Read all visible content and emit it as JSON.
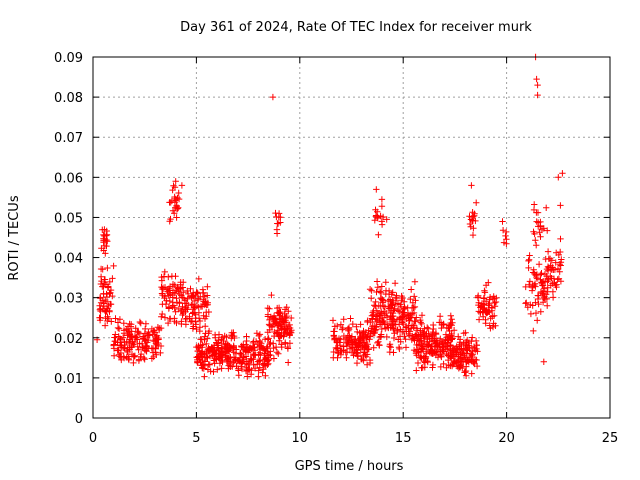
{
  "chart_data": {
    "type": "scatter",
    "title": "Day 361 of 2024, Rate Of TEC Index for receiver murk",
    "xlabel": "GPS time / hours",
    "ylabel": "ROTI / TECUs",
    "xlim": [
      0,
      25
    ],
    "ylim": [
      0,
      0.09
    ],
    "x_ticks": [
      0,
      5,
      10,
      15,
      20,
      25
    ],
    "x_tick_labels": [
      "0",
      "5",
      "10",
      "15",
      "20",
      "25"
    ],
    "y_ticks": [
      0,
      0.01,
      0.02,
      0.03,
      0.04,
      0.05,
      0.06,
      0.07,
      0.08,
      0.09
    ],
    "y_tick_labels": [
      "0",
      "0.01",
      "0.02",
      "0.03",
      "0.04",
      "0.05",
      "0.06",
      "0.07",
      "0.08",
      "0.09"
    ],
    "grid": true,
    "marker": "plus",
    "color": "#ff0000",
    "clusters": [
      {
        "x_start": 0.3,
        "x_end": 1.0,
        "y_center": 0.03,
        "y_spread": 0.008,
        "count": 60
      },
      {
        "x_start": 0.4,
        "x_end": 0.7,
        "y_center": 0.044,
        "y_spread": 0.004,
        "count": 18
      },
      {
        "x_start": 1.0,
        "x_end": 3.3,
        "y_center": 0.019,
        "y_spread": 0.005,
        "count": 160
      },
      {
        "x_start": 3.3,
        "x_end": 4.4,
        "y_center": 0.03,
        "y_spread": 0.007,
        "count": 80
      },
      {
        "x_start": 3.7,
        "x_end": 4.2,
        "y_center": 0.053,
        "y_spread": 0.005,
        "count": 24
      },
      {
        "x_start": 4.4,
        "x_end": 5.6,
        "y_center": 0.027,
        "y_spread": 0.006,
        "count": 80
      },
      {
        "x_start": 5.0,
        "x_end": 8.6,
        "y_center": 0.016,
        "y_spread": 0.005,
        "count": 320
      },
      {
        "x_start": 8.4,
        "x_end": 9.6,
        "y_center": 0.022,
        "y_spread": 0.007,
        "count": 110
      },
      {
        "x_start": 8.8,
        "x_end": 9.1,
        "y_center": 0.048,
        "y_spread": 0.003,
        "count": 8
      },
      {
        "x_start": 11.6,
        "x_end": 13.4,
        "y_center": 0.019,
        "y_spread": 0.005,
        "count": 150
      },
      {
        "x_start": 13.4,
        "x_end": 15.6,
        "y_center": 0.025,
        "y_spread": 0.008,
        "count": 230
      },
      {
        "x_start": 13.6,
        "x_end": 14.1,
        "y_center": 0.05,
        "y_spread": 0.005,
        "count": 14
      },
      {
        "x_start": 15.6,
        "x_end": 17.4,
        "y_center": 0.019,
        "y_spread": 0.006,
        "count": 200
      },
      {
        "x_start": 17.4,
        "x_end": 18.6,
        "y_center": 0.016,
        "y_spread": 0.005,
        "count": 110
      },
      {
        "x_start": 18.2,
        "x_end": 18.6,
        "y_center": 0.05,
        "y_spread": 0.005,
        "count": 14
      },
      {
        "x_start": 18.6,
        "x_end": 19.5,
        "y_center": 0.027,
        "y_spread": 0.006,
        "count": 60
      },
      {
        "x_start": 19.7,
        "x_end": 20.0,
        "y_center": 0.045,
        "y_spread": 0.003,
        "count": 6
      },
      {
        "x_start": 20.9,
        "x_end": 22.0,
        "y_center": 0.032,
        "y_spread": 0.008,
        "count": 70
      },
      {
        "x_start": 21.3,
        "x_end": 22.0,
        "y_center": 0.048,
        "y_spread": 0.005,
        "count": 20
      },
      {
        "x_start": 22.0,
        "x_end": 22.7,
        "y_center": 0.037,
        "y_spread": 0.006,
        "count": 40
      }
    ],
    "points": [
      [
        0.2,
        0.0195
      ],
      [
        8.7,
        0.08
      ],
      [
        21.4,
        0.09
      ],
      [
        21.45,
        0.0845
      ],
      [
        21.5,
        0.083
      ],
      [
        21.5,
        0.0805
      ],
      [
        21.8,
        0.014
      ],
      [
        22.5,
        0.06
      ],
      [
        22.7,
        0.061
      ],
      [
        22.6,
        0.053
      ],
      [
        14.2,
        0.0495
      ],
      [
        19.8,
        0.049
      ],
      [
        4.3,
        0.058
      ],
      [
        4.0,
        0.059
      ],
      [
        13.7,
        0.057
      ],
      [
        18.3,
        0.058
      ],
      [
        9.0,
        0.051
      ],
      [
        8.9,
        0.046
      ]
    ]
  }
}
